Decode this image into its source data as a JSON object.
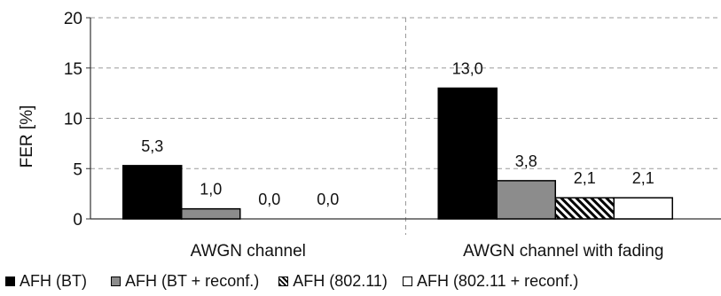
{
  "chart_data": {
    "type": "bar",
    "title": "",
    "xlabel": "",
    "ylabel": "FER [%]",
    "ylim": [
      0,
      20
    ],
    "yticks": [
      0,
      5,
      10,
      15,
      20
    ],
    "grid": "dashed-horizontal",
    "legend_position": "bottom",
    "categories": [
      "AWGN channel",
      "AWGN channel with fading"
    ],
    "series": [
      {
        "name": "AFH (BT)",
        "values": [
          5.3,
          13.0
        ],
        "labels": [
          "5,3",
          "13,0"
        ],
        "fill": "solid",
        "color": "#000000"
      },
      {
        "name": "AFH (BT + reconf.)",
        "values": [
          1.0,
          3.8
        ],
        "labels": [
          "1,0",
          "3,8"
        ],
        "fill": "solid",
        "color": "#8c8c8c"
      },
      {
        "name": "AFH (802.11)",
        "values": [
          0.0,
          2.1
        ],
        "labels": [
          "0,0",
          "2,1"
        ],
        "fill": "hatch",
        "color": "#000000"
      },
      {
        "name": "AFH (802.11 + reconf.)",
        "values": [
          0.0,
          2.1
        ],
        "labels": [
          "0,0",
          "2,1"
        ],
        "fill": "solid",
        "color": "#ffffff"
      }
    ]
  }
}
